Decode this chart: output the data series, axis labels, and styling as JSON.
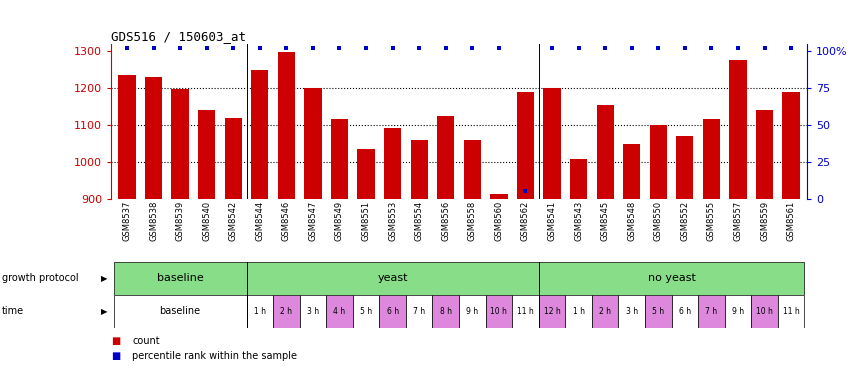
{
  "title": "GDS516 / 150603_at",
  "samples": [
    "GSM8537",
    "GSM8538",
    "GSM8539",
    "GSM8540",
    "GSM8542",
    "GSM8544",
    "GSM8546",
    "GSM8547",
    "GSM8549",
    "GSM8551",
    "GSM8553",
    "GSM8554",
    "GSM8556",
    "GSM8558",
    "GSM8560",
    "GSM8562",
    "GSM8541",
    "GSM8543",
    "GSM8545",
    "GSM8548",
    "GSM8550",
    "GSM8552",
    "GSM8555",
    "GSM8557",
    "GSM8559",
    "GSM8561"
  ],
  "counts": [
    1235,
    1228,
    1197,
    1140,
    1118,
    1248,
    1295,
    1200,
    1115,
    1035,
    1093,
    1060,
    1125,
    1060,
    915,
    1190,
    1200,
    1010,
    1155,
    1050,
    1100,
    1070,
    1115,
    1275,
    1140,
    1190
  ],
  "percentiles": [
    99,
    99,
    99,
    99,
    99,
    99,
    99,
    99,
    99,
    99,
    99,
    99,
    99,
    99,
    99,
    6,
    99,
    99,
    99,
    99,
    99,
    99,
    99,
    99,
    99,
    99
  ],
  "bar_color": "#cc0000",
  "percentile_color": "#0000cc",
  "ymin": 900,
  "ymax": 1300,
  "yticks": [
    900,
    1000,
    1100,
    1200,
    1300
  ],
  "y2ticks": [
    0,
    25,
    50,
    75,
    100
  ],
  "pink_color": "#dd88dd",
  "green_color": "#88dd88",
  "white_color": "#ffffff",
  "gray_color": "#cccccc"
}
